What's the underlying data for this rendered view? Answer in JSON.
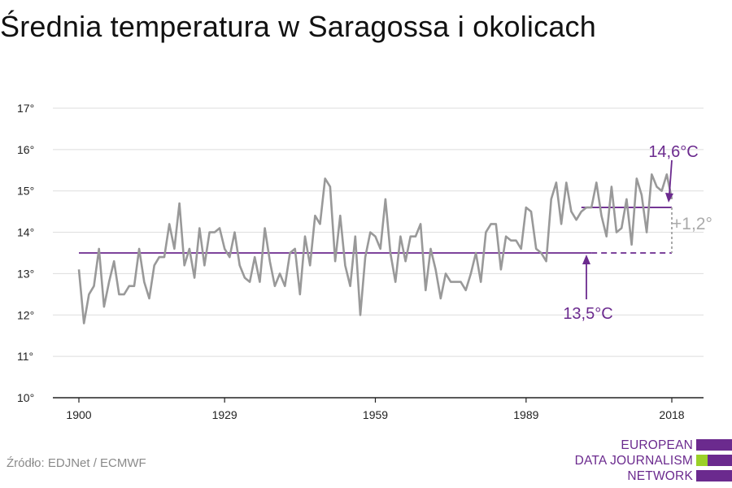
{
  "title": "Średnia temperatura w Saragossa i okolicach",
  "source": "Źródło: EDJNet / ECMWF",
  "logo": {
    "lines": [
      "EUROPEAN",
      "DATA JOURNALISM",
      "NETWORK"
    ]
  },
  "colors": {
    "series": "#999999",
    "accent": "#6b2a8e",
    "logo_green": "#9bd028",
    "grid": "#dddddd"
  },
  "chart_data": {
    "type": "line",
    "title": "Średnia temperatura w Saragossa i okolicach",
    "xlabel": "",
    "ylabel": "",
    "xlim": [
      1900,
      2018
    ],
    "ylim": [
      10,
      17
    ],
    "x_ticks": [
      1900,
      1929,
      1959,
      1989,
      2018
    ],
    "x_tick_labels": [
      "1900",
      "1929",
      "1959",
      "1989",
      "2018"
    ],
    "y_ticks": [
      10,
      11,
      12,
      13,
      14,
      15,
      16,
      17
    ],
    "y_tick_labels": [
      "10°",
      "11°",
      "12°",
      "13°",
      "14°",
      "15°",
      "16°",
      "17°"
    ],
    "grid": true,
    "series": [
      {
        "x_start": 1900,
        "x_step": 1,
        "values": [
          13.1,
          11.8,
          12.5,
          12.7,
          13.6,
          12.2,
          12.8,
          13.3,
          12.5,
          12.5,
          12.7,
          12.7,
          13.6,
          12.8,
          12.4,
          13.2,
          13.4,
          13.4,
          14.2,
          13.6,
          14.7,
          13.2,
          13.6,
          12.9,
          14.1,
          13.2,
          14.0,
          14.0,
          14.1,
          13.6,
          13.4,
          14.0,
          13.2,
          12.9,
          12.8,
          13.4,
          12.8,
          14.1,
          13.3,
          12.7,
          13.0,
          12.7,
          13.5,
          13.6,
          12.5,
          13.9,
          13.2,
          14.4,
          14.2,
          15.3,
          15.1,
          13.3,
          14.4,
          13.2,
          12.7,
          13.9,
          12.0,
          13.4,
          14.0,
          13.9,
          13.6,
          14.8,
          13.5,
          12.8,
          13.9,
          13.3,
          13.9,
          13.9,
          14.2,
          12.6,
          13.6,
          13.1,
          12.4,
          13.0,
          12.8,
          12.8,
          12.8,
          12.6,
          13.0,
          13.5,
          12.8,
          14.0,
          14.2,
          14.2,
          13.1,
          13.9,
          13.8,
          13.8,
          13.6,
          14.6,
          14.5,
          13.6,
          13.5,
          13.3,
          14.8,
          15.2,
          14.2,
          15.2,
          14.5,
          14.3,
          14.5,
          14.6,
          14.6,
          15.2,
          14.4,
          13.9,
          15.1,
          14.0,
          14.1,
          14.8,
          13.7,
          15.3,
          14.9,
          14.0,
          15.4,
          15.1,
          15.0,
          15.4,
          14.8
        ]
      }
    ],
    "reference_lines": [
      {
        "value": 13.5,
        "from": 1900,
        "to": 2018,
        "label": "13,5°C"
      },
      {
        "value": 14.6,
        "from": 2000,
        "to": 2018,
        "label": "14,6°C"
      }
    ],
    "annotations": [
      {
        "text": "13,5°C"
      },
      {
        "text": "14,6°C"
      },
      {
        "text": "+1,2°"
      }
    ]
  }
}
